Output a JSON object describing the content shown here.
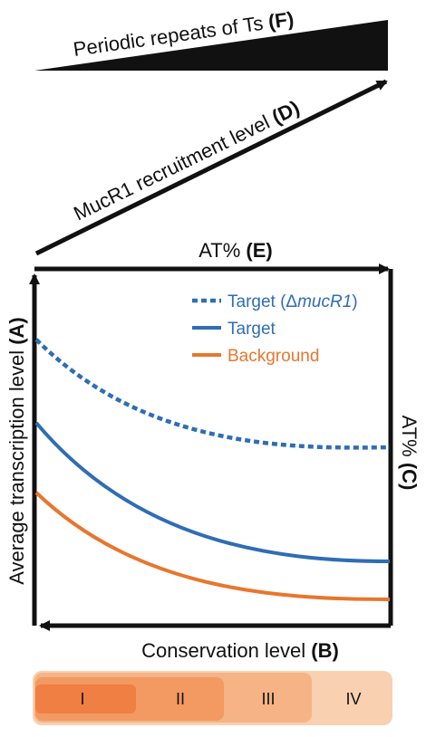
{
  "labels": {
    "periodic_repeats": {
      "text": "Periodic repeats of Ts",
      "code": "(F)"
    },
    "mucr1_recruitment": {
      "text": "MucR1 recruitment level",
      "code": "(D)"
    },
    "at_top": {
      "text": "AT%",
      "code": "(E)"
    },
    "at_right": {
      "text": "AT%",
      "code": "(C)"
    },
    "y_axis": {
      "text": "Average transcription level",
      "code": "(A)"
    },
    "x_axis": {
      "text": "Conservation level",
      "code": "(B)"
    }
  },
  "legend": [
    {
      "text_pre": "Target (Δ",
      "text_italic": "mucR1",
      "text_post": ")",
      "color": "#2f6db5",
      "style": "dotted"
    },
    {
      "text_pre": "Target",
      "text_italic": "",
      "text_post": "",
      "color": "#2f6db5",
      "style": "solid"
    },
    {
      "text_pre": "Background",
      "text_italic": "",
      "text_post": "",
      "color": "#e8762e",
      "style": "solid"
    }
  ],
  "conservation_bands": [
    {
      "label": "I",
      "color": "#ef7f43"
    },
    {
      "label": "II",
      "color": "#f29a62"
    },
    {
      "label": "III",
      "color": "#f5b386"
    },
    {
      "label": "IV",
      "color": "#f9d0b0"
    }
  ],
  "colors": {
    "axis": "#111111",
    "target": "#2f6db5",
    "background": "#e8762e"
  }
}
